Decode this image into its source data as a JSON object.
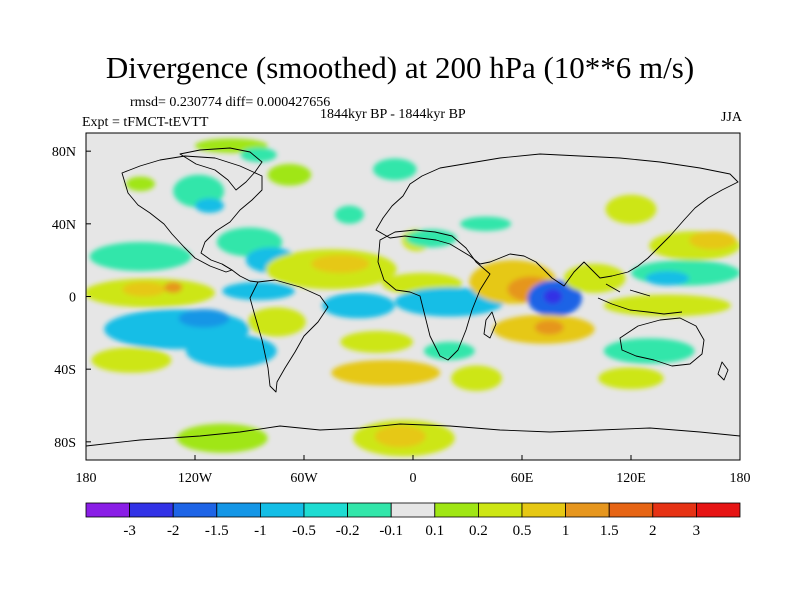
{
  "chart_data": {
    "type": "heatmap",
    "title": "Divergence (smoothed) at 200 hPa (10**6 m/s)",
    "stats": "rmsd= 0.230774 diff= 0.000427656",
    "experiment": "Expt = tFMCT-tEVTT",
    "period": "1844kyr BP - 1844kyr BP",
    "season": "JJA",
    "x_range": [
      -180,
      180
    ],
    "y_range": [
      -90,
      90
    ],
    "x_ticks": [
      {
        "value": -180,
        "label": "180"
      },
      {
        "value": -120,
        "label": "120W"
      },
      {
        "value": -60,
        "label": "60W"
      },
      {
        "value": 0,
        "label": "0"
      },
      {
        "value": 60,
        "label": "60E"
      },
      {
        "value": 120,
        "label": "120E"
      },
      {
        "value": 180,
        "label": "180"
      }
    ],
    "y_ticks": [
      {
        "value": 80,
        "label": "80N"
      },
      {
        "value": 40,
        "label": "40N"
      },
      {
        "value": 0,
        "label": "0"
      },
      {
        "value": -40,
        "label": "40S"
      },
      {
        "value": -80,
        "label": "80S"
      }
    ],
    "background_color": "#e6e6e6",
    "colorbar": {
      "levels": [
        {
          "label": "-3"
        },
        {
          "label": "-2"
        },
        {
          "label": "-1.5"
        },
        {
          "label": "-1"
        },
        {
          "label": "-0.5"
        },
        {
          "label": "-0.2"
        },
        {
          "label": "-0.1"
        },
        {
          "label": "0.1"
        },
        {
          "label": "0.2"
        },
        {
          "label": "0.5"
        },
        {
          "label": "1"
        },
        {
          "label": "1.5"
        },
        {
          "label": "2"
        },
        {
          "label": "3"
        }
      ],
      "colors": [
        "#8a1ee6",
        "#3232e6",
        "#1e64e6",
        "#1496e6",
        "#14bee6",
        "#1edcd2",
        "#32e6aa",
        "#e6e6e6",
        "#a0e614",
        "#cde614",
        "#e6c814",
        "#e6961e",
        "#e66414",
        "#e63214",
        "#e61414"
      ]
    },
    "regions": [
      {
        "lon": 2,
        "lat": 31,
        "rlon": 8,
        "rlat": 6,
        "color": "#cde614"
      },
      {
        "lon": 10,
        "lat": 32,
        "rlon": 14,
        "rlat": 5,
        "color": "#32e6aa"
      },
      {
        "lon": -100,
        "lat": 83,
        "rlon": 20,
        "rlat": 4,
        "color": "#a0e614"
      },
      {
        "lon": -85,
        "lat": 78,
        "rlon": 10,
        "rlat": 4,
        "color": "#32e6aa"
      },
      {
        "lon": -118,
        "lat": 58,
        "rlon": 14,
        "rlat": 9,
        "color": "#32e6aa"
      },
      {
        "lon": -68,
        "lat": 67,
        "rlon": 12,
        "rlat": 6,
        "color": "#a0e614"
      },
      {
        "lon": -10,
        "lat": 70,
        "rlon": 12,
        "rlat": 6,
        "color": "#32e6aa"
      },
      {
        "lon": -150,
        "lat": 62,
        "rlon": 8,
        "rlat": 4,
        "color": "#a0e614"
      },
      {
        "lon": -112,
        "lat": 50,
        "rlon": 8,
        "rlat": 4,
        "color": "#14bee6"
      },
      {
        "lon": -35,
        "lat": 45,
        "rlon": 8,
        "rlat": 5,
        "color": "#32e6aa"
      },
      {
        "lon": 40,
        "lat": 40,
        "rlon": 14,
        "rlat": 4,
        "color": "#32e6aa"
      },
      {
        "lon": 120,
        "lat": 48,
        "rlon": 14,
        "rlat": 8,
        "color": "#cde614"
      },
      {
        "lon": -150,
        "lat": 22,
        "rlon": 28,
        "rlat": 8,
        "color": "#32e6aa"
      },
      {
        "lon": -90,
        "lat": 30,
        "rlon": 18,
        "rlat": 8,
        "color": "#32e6aa"
      },
      {
        "lon": -78,
        "lat": 20,
        "rlon": 14,
        "rlat": 7,
        "color": "#14bee6"
      },
      {
        "lon": 155,
        "lat": 28,
        "rlon": 25,
        "rlat": 8,
        "color": "#cde614"
      },
      {
        "lon": 165,
        "lat": 31,
        "rlon": 13,
        "rlat": 5,
        "color": "#e6c814"
      },
      {
        "lon": 150,
        "lat": 13,
        "rlon": 30,
        "rlat": 7,
        "color": "#32e6aa"
      },
      {
        "lon": 140,
        "lat": 10,
        "rlon": 12,
        "rlat": 4,
        "color": "#14bee6"
      },
      {
        "lon": -45,
        "lat": 15,
        "rlon": 36,
        "rlat": 11,
        "color": "#cde614"
      },
      {
        "lon": -40,
        "lat": 18,
        "rlon": 16,
        "rlat": 5,
        "color": "#e6c814"
      },
      {
        "lon": 5,
        "lat": 7,
        "rlon": 22,
        "rlat": 6,
        "color": "#cde614"
      },
      {
        "lon": -145,
        "lat": 2,
        "rlon": 36,
        "rlat": 8,
        "color": "#cde614"
      },
      {
        "lon": -148,
        "lat": 4,
        "rlon": 12,
        "rlat": 4,
        "color": "#e6c814"
      },
      {
        "lon": -132,
        "lat": 5,
        "rlon": 5,
        "rlat": 3,
        "color": "#e6961e"
      },
      {
        "lon": -85,
        "lat": 3,
        "rlon": 20,
        "rlat": 5,
        "color": "#14bee6"
      },
      {
        "lon": 20,
        "lat": -3,
        "rlon": 30,
        "rlat": 8,
        "color": "#14bee6"
      },
      {
        "lon": 55,
        "lat": 8,
        "rlon": 24,
        "rlat": 12,
        "color": "#e6c814"
      },
      {
        "lon": 65,
        "lat": 4,
        "rlon": 13,
        "rlat": 7,
        "color": "#e6961e"
      },
      {
        "lon": 78,
        "lat": -1,
        "rlon": 15,
        "rlat": 10,
        "color": "#1e64e6"
      },
      {
        "lon": 77,
        "lat": 0,
        "rlon": 5,
        "rlat": 4,
        "color": "#3232e6"
      },
      {
        "lon": 100,
        "lat": 10,
        "rlon": 17,
        "rlat": 8,
        "color": "#cde614"
      },
      {
        "lon": 140,
        "lat": -5,
        "rlon": 35,
        "rlat": 6,
        "color": "#cde614"
      },
      {
        "lon": -130,
        "lat": -18,
        "rlon": 40,
        "rlat": 11,
        "color": "#14bee6"
      },
      {
        "lon": -115,
        "lat": -12,
        "rlon": 14,
        "rlat": 5,
        "color": "#1496e6"
      },
      {
        "lon": -75,
        "lat": -14,
        "rlon": 16,
        "rlat": 8,
        "color": "#cde614"
      },
      {
        "lon": -30,
        "lat": -5,
        "rlon": 20,
        "rlat": 7,
        "color": "#14bee6"
      },
      {
        "lon": 72,
        "lat": -18,
        "rlon": 28,
        "rlat": 8,
        "color": "#e6c814"
      },
      {
        "lon": 75,
        "lat": -17,
        "rlon": 8,
        "rlat": 4,
        "color": "#e6961e"
      },
      {
        "lon": -155,
        "lat": -35,
        "rlon": 22,
        "rlat": 7,
        "color": "#cde614"
      },
      {
        "lon": -100,
        "lat": -30,
        "rlon": 25,
        "rlat": 9,
        "color": "#14bee6"
      },
      {
        "lon": -20,
        "lat": -25,
        "rlon": 20,
        "rlat": 6,
        "color": "#cde614"
      },
      {
        "lon": -15,
        "lat": -42,
        "rlon": 30,
        "rlat": 7,
        "color": "#e6c814"
      },
      {
        "lon": 20,
        "lat": -30,
        "rlon": 14,
        "rlat": 5,
        "color": "#32e6aa"
      },
      {
        "lon": 35,
        "lat": -45,
        "rlon": 14,
        "rlat": 7,
        "color": "#cde614"
      },
      {
        "lon": 130,
        "lat": -30,
        "rlon": 25,
        "rlat": 7,
        "color": "#32e6aa"
      },
      {
        "lon": 120,
        "lat": -45,
        "rlon": 18,
        "rlat": 6,
        "color": "#cde614"
      },
      {
        "lon": -105,
        "lat": -78,
        "rlon": 25,
        "rlat": 8,
        "color": "#a0e614"
      },
      {
        "lon": -5,
        "lat": -78,
        "rlon": 28,
        "rlat": 10,
        "color": "#cde614"
      },
      {
        "lon": -7,
        "lat": -77,
        "rlon": 14,
        "rlat": 6,
        "color": "#e6c814"
      }
    ]
  }
}
